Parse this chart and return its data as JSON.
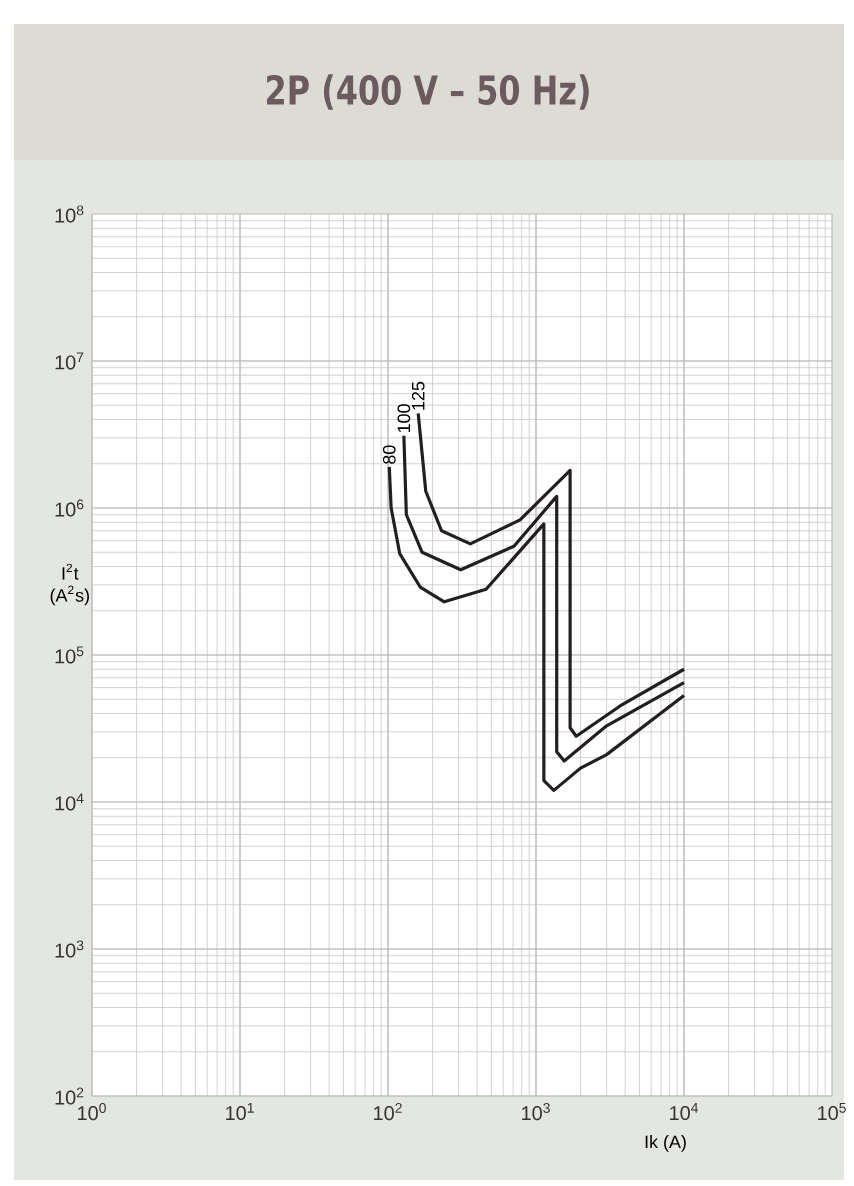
{
  "chart_data": {
    "type": "line",
    "title": "2P (400 V – 50 Hz)",
    "xlabel": "Ik (A)",
    "ylabel": "I$^{2}$t (A$^{2}$s)",
    "log": "xy",
    "grid": true,
    "legend": false,
    "marker": "none",
    "line_style": "solid",
    "xlim": [
      1,
      100000
    ],
    "ylim": [
      100,
      100000000
    ],
    "xticks": [
      {
        "value": 1,
        "label": "10$^{0}$"
      },
      {
        "value": 10,
        "label": "10$^{1}$"
      },
      {
        "value": 100,
        "label": "10$^{2}$"
      },
      {
        "value": 1000,
        "label": "10$^{3}$"
      },
      {
        "value": 10000,
        "label": "10$^{4}$"
      },
      {
        "value": 100000,
        "label": "10$^{5}$"
      }
    ],
    "yticks": [
      {
        "value": 100,
        "label": "10$^{2}$"
      },
      {
        "value": 1000,
        "label": "10$^{3}$"
      },
      {
        "value": 10000,
        "label": "10$^{4}$"
      },
      {
        "value": 100000,
        "label": "10$^{5}$"
      },
      {
        "value": 1000000,
        "label": "10$^{6}$"
      },
      {
        "value": 10000000,
        "label": "10$^{7}$"
      },
      {
        "value": 100000000,
        "label": "10$^{8}$"
      }
    ],
    "series": [
      {
        "name": "80",
        "color": "#231f20",
        "x": [
          102,
          105,
          120,
          165,
          240,
          460,
          1130,
          1130,
          1320,
          2000,
          3000,
          10000
        ],
        "values": [
          1900000,
          1000000,
          490000,
          290000,
          230000,
          280000,
          780000,
          14000,
          12000,
          17000,
          21000,
          53000
        ]
      },
      {
        "name": "100",
        "color": "#231f20",
        "x": [
          128,
          133,
          170,
          310,
          710,
          1380,
          1380,
          1550,
          3000,
          10000
        ],
        "values": [
          3100000,
          900000,
          500000,
          380000,
          550000,
          1200000,
          22000,
          19000,
          33000,
          65000
        ]
      },
      {
        "name": "125",
        "color": "#231f20",
        "x": [
          160,
          180,
          230,
          360,
          780,
          1700,
          1700,
          1870,
          3700,
          10000
        ],
        "values": [
          4400000,
          1300000,
          700000,
          570000,
          830000,
          1800000,
          32000,
          28000,
          45000,
          80000
        ]
      }
    ]
  }
}
